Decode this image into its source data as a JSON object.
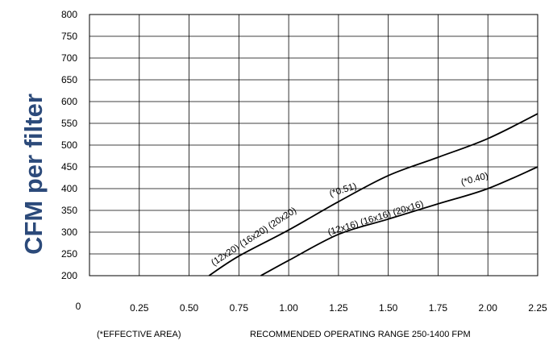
{
  "chart_data": {
    "type": "line",
    "ylabel": "CFM per filter",
    "xlabel": "",
    "x_ticks": [
      "0.25",
      "0.50",
      "0.75",
      "1.00",
      "1.25",
      "1.50",
      "1.75",
      "2.00",
      "2.25"
    ],
    "y_ticks": [
      "200",
      "250",
      "300",
      "350",
      "400",
      "450",
      "500",
      "550",
      "600",
      "650",
      "700",
      "750",
      "800"
    ],
    "origin_label": "0",
    "xlim": [
      0,
      2.25
    ],
    "ylim": [
      200,
      800
    ],
    "grid": true,
    "series": [
      {
        "x": [
          0.6,
          0.75,
          1.0,
          1.25,
          1.5,
          1.75,
          2.0,
          2.25
        ],
        "y": [
          200,
          245,
          305,
          370,
          430,
          472,
          515,
          572
        ]
      },
      {
        "x": [
          0.86,
          1.0,
          1.25,
          1.5,
          1.75,
          2.0,
          2.25
        ],
        "y": [
          200,
          235,
          295,
          330,
          365,
          400,
          450
        ]
      }
    ],
    "annotations": [
      {
        "text": "(12x20) (16x20) (20x20)",
        "series": 0
      },
      {
        "text": "(*0.51)",
        "series": 0
      },
      {
        "text": "(12x16) (16x16) (20x16)",
        "series": 1
      },
      {
        "text": "(*0.40)",
        "series": 1
      }
    ],
    "footnotes": [
      "(*EFFECTIVE AREA)",
      "RECOMMENDED OPERATING RANGE 250-1400 FPM"
    ]
  }
}
